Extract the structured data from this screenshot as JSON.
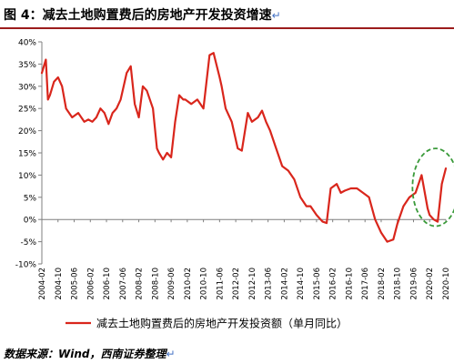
{
  "figure": {
    "title": "图 4：减去土地购置费后的房地产开发投资增速",
    "return_mark": "↵",
    "source": "数据来源：Wind，西南证券整理",
    "source_mark": "↵"
  },
  "chart_data": {
    "type": "line",
    "title": "",
    "xlabel": "",
    "ylabel": "",
    "ylim": [
      -10,
      40
    ],
    "yticks": [
      -10,
      -5,
      0,
      5,
      10,
      15,
      20,
      25,
      30,
      35,
      40
    ],
    "ytick_labels": [
      "-10%",
      "-5%",
      "0%",
      "5%",
      "10%",
      "15%",
      "20%",
      "25%",
      "30%",
      "35%",
      "40%"
    ],
    "xlim": [
      "2004-02",
      "2020-10"
    ],
    "x_tick_labels": [
      "2004-02",
      "2004-10",
      "2005-06",
      "2006-02",
      "2006-10",
      "2007-06",
      "2008-02",
      "2008-10",
      "2009-06",
      "2010-02",
      "2010-10",
      "2011-06",
      "2012-02",
      "2012-10",
      "2013-06",
      "2014-02",
      "2014-10",
      "2015-06",
      "2016-02",
      "2016-10",
      "2017-06",
      "2018-02",
      "2018-10",
      "2019-06",
      "2020-02",
      "2020-10"
    ],
    "grid": false,
    "legend_position": "bottom",
    "annotation": "dashed green ellipse around 2019-10 to 2020-10",
    "series": [
      {
        "name": "减去土地购置费后的房地产开发投资额（单月同比）",
        "color": "#d9261c",
        "x": [
          "2004-02",
          "2004-04",
          "2004-05",
          "2004-06",
          "2004-08",
          "2004-10",
          "2004-12",
          "2005-02",
          "2005-05",
          "2005-08",
          "2005-11",
          "2006-01",
          "2006-03",
          "2006-05",
          "2006-07",
          "2006-09",
          "2006-11",
          "2007-01",
          "2007-03",
          "2007-05",
          "2007-08",
          "2007-10",
          "2007-12",
          "2008-02",
          "2008-04",
          "2008-06",
          "2008-09",
          "2008-11",
          "2008-12",
          "2009-02",
          "2009-04",
          "2009-06",
          "2009-08",
          "2009-10",
          "2009-12",
          "2010-01",
          "2010-04",
          "2010-07",
          "2010-10",
          "2011-01",
          "2011-03",
          "2011-06",
          "2011-07",
          "2011-09",
          "2011-12",
          "2012-03",
          "2012-05",
          "2012-08",
          "2012-10",
          "2013-01",
          "2013-03",
          "2013-05",
          "2013-07",
          "2013-10",
          "2014-01",
          "2014-04",
          "2014-07",
          "2014-10",
          "2015-01",
          "2015-03",
          "2015-06",
          "2015-09",
          "2015-11",
          "2016-01",
          "2016-04",
          "2016-06",
          "2016-08",
          "2016-11",
          "2017-02",
          "2017-05",
          "2017-08",
          "2017-11",
          "2018-02",
          "2018-05",
          "2018-08",
          "2018-10",
          "2019-01",
          "2019-04",
          "2019-07",
          "2019-10",
          "2020-01",
          "2020-02",
          "2020-04",
          "2020-06",
          "2020-08",
          "2020-10"
        ],
        "values": [
          33,
          36,
          27,
          28,
          31,
          32,
          30,
          25,
          23,
          24,
          22,
          22.5,
          22,
          23,
          25,
          24,
          21.5,
          24,
          25,
          27,
          33,
          34.5,
          26,
          23,
          30,
          29,
          25,
          16,
          15,
          13.5,
          15,
          14,
          22,
          28,
          27,
          27,
          26,
          27,
          25,
          37,
          37.5,
          32,
          30,
          25,
          22,
          16,
          15.5,
          24,
          22,
          23,
          24.5,
          22,
          20,
          16,
          12,
          11,
          9,
          5,
          3,
          3,
          1,
          -0.5,
          -0.8,
          7,
          8,
          6,
          6.5,
          7,
          7,
          6,
          5,
          0,
          -3,
          -5,
          -4.5,
          -1,
          3,
          5,
          6,
          10,
          2.5,
          1,
          0,
          -0.5,
          8,
          11.5
        ]
      }
    ]
  }
}
